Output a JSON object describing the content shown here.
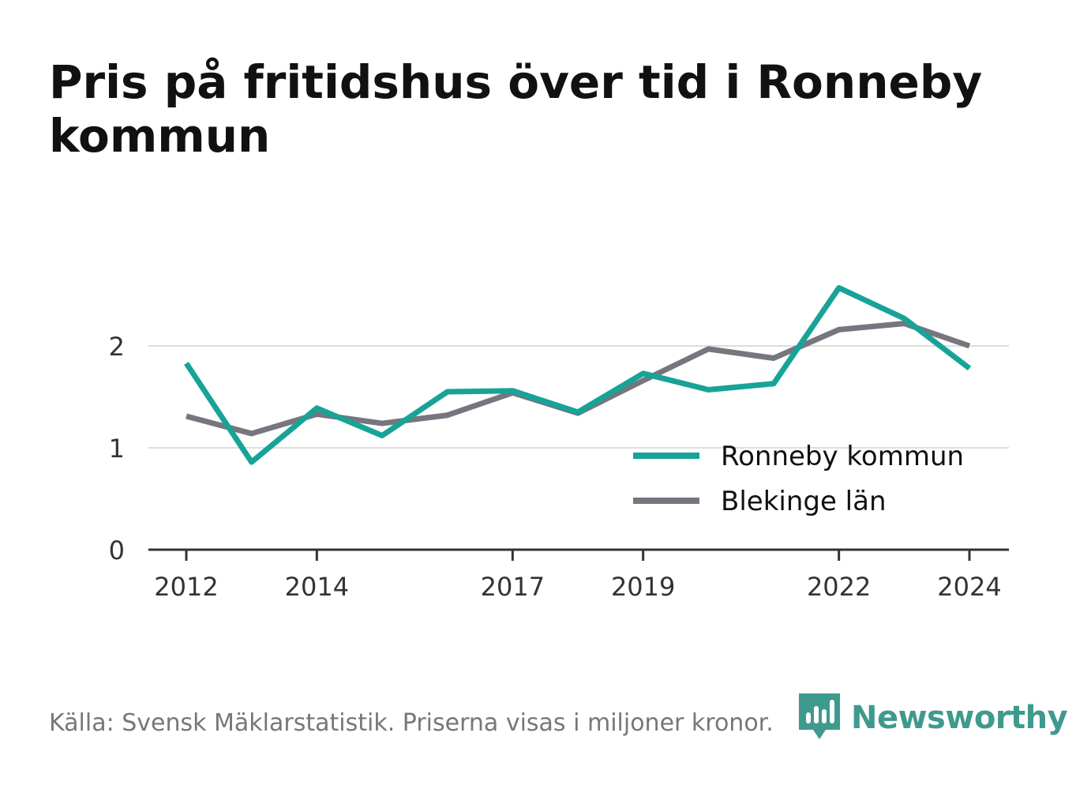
{
  "title": "Pris på fritidshus över tid i Ronneby kommun",
  "source": "Källa: Svensk Mäklarstatistik. Priserna visas i miljoner kronor.",
  "brand": "Newsworthy",
  "colors": {
    "ronneby": "#17a398",
    "blekinge": "#77757d",
    "grid": "#dddddd",
    "axis": "#333333",
    "brand": "#3f9a8e"
  },
  "chart_data": {
    "type": "line",
    "x": [
      2012,
      2013,
      2014,
      2015,
      2016,
      2017,
      2018,
      2019,
      2020,
      2021,
      2022,
      2023,
      2024
    ],
    "x_ticks": [
      "2012",
      "2014",
      "2017",
      "2019",
      "2022",
      "2024"
    ],
    "y_ticks": [
      "0",
      "1",
      "2"
    ],
    "ylim": [
      0,
      2.9
    ],
    "grid": true,
    "legend_position": "bottom-right",
    "series": [
      {
        "name": "Ronneby kommun",
        "color_key": "ronneby",
        "values": [
          1.83,
          0.86,
          1.39,
          1.12,
          1.55,
          1.56,
          1.35,
          1.73,
          1.57,
          1.63,
          2.57,
          2.27,
          1.78
        ]
      },
      {
        "name": "Blekinge län",
        "color_key": "blekinge",
        "values": [
          1.31,
          1.14,
          1.33,
          1.24,
          1.32,
          1.54,
          1.34,
          1.66,
          1.97,
          1.88,
          2.16,
          2.22,
          2.0
        ]
      }
    ]
  }
}
